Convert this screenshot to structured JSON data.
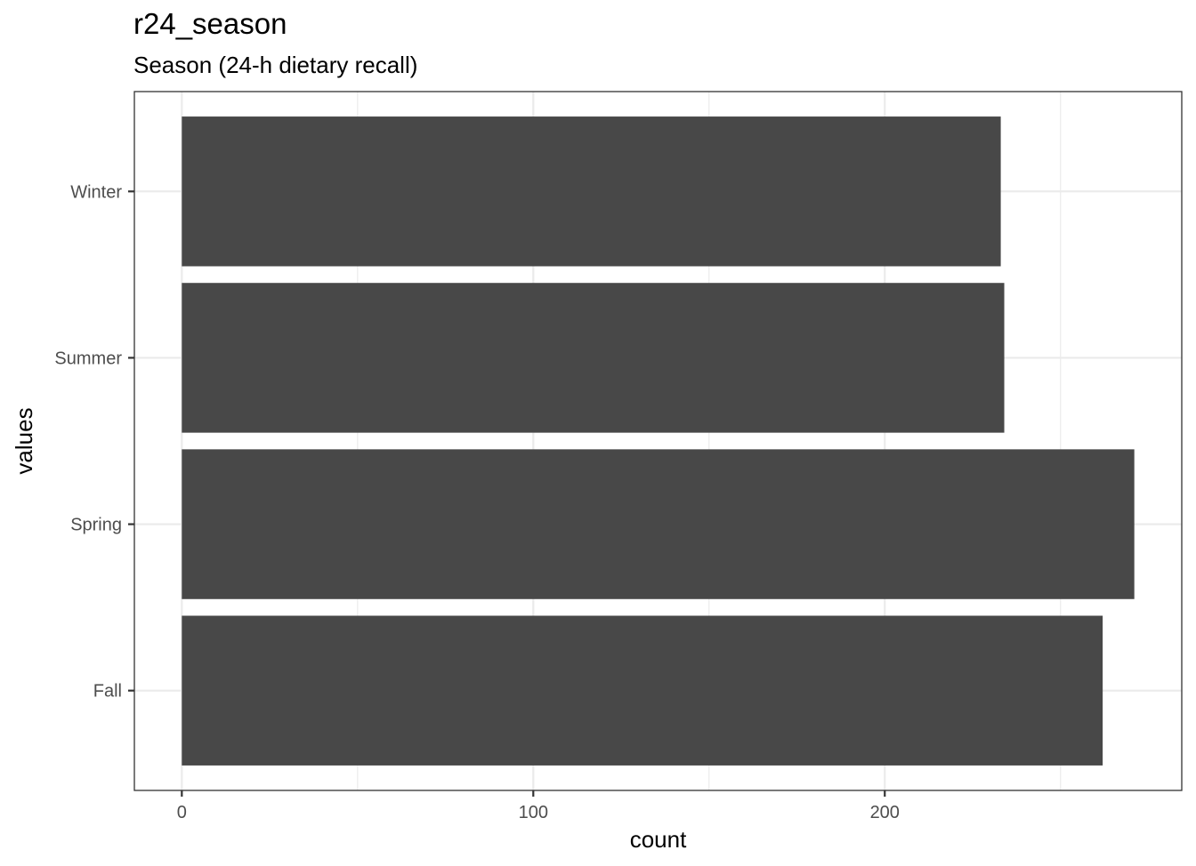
{
  "chart_data": {
    "type": "bar",
    "orientation": "horizontal",
    "title": "r24_season",
    "subtitle": "Season (24-h dietary recall)",
    "xlabel": "count",
    "ylabel": "values",
    "categories": [
      "Fall",
      "Spring",
      "Summer",
      "Winter"
    ],
    "values": [
      262,
      271,
      234,
      233
    ],
    "xlim": [
      -13.5,
      284.5
    ],
    "xticks": [
      0,
      100,
      200
    ],
    "xtick_labels": [
      "0",
      "100",
      "200"
    ],
    "minor_xticks": [
      50,
      150,
      250
    ],
    "grid": true,
    "bar_color": "#484848",
    "grid_color": "#ebebeb",
    "legend": "none"
  }
}
